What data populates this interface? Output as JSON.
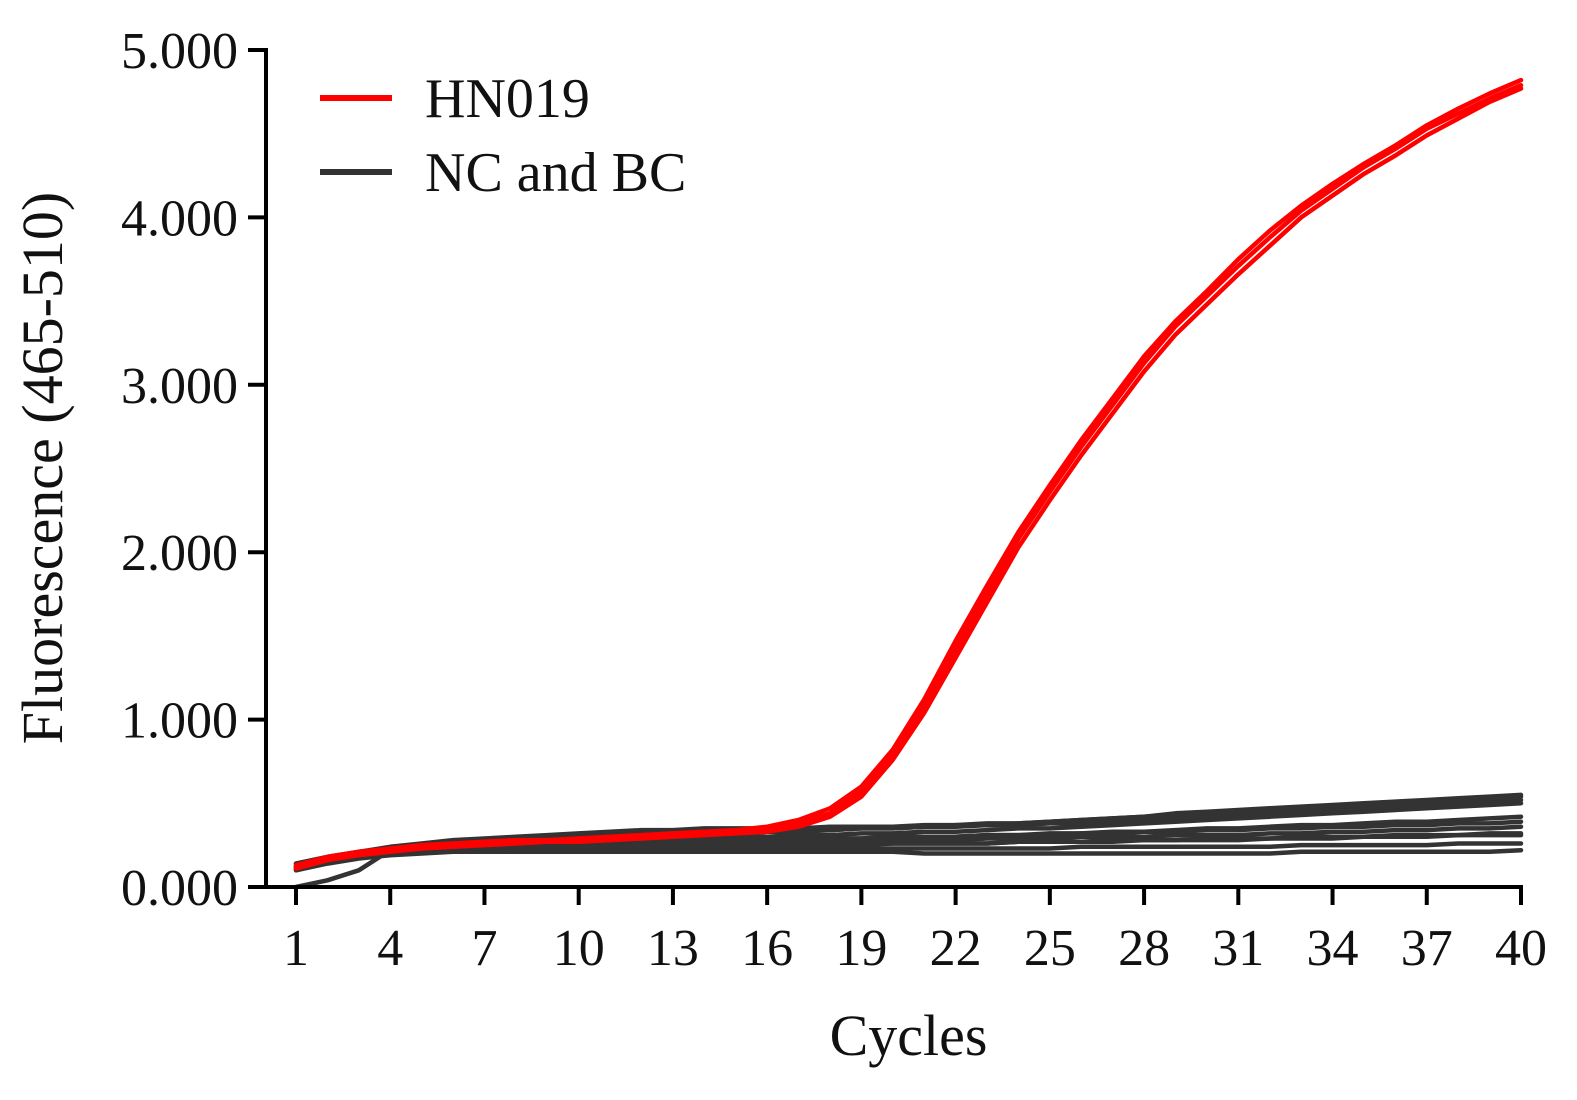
{
  "chart_data": {
    "type": "line",
    "title": "",
    "xlabel": "Cycles",
    "ylabel": "Fluorescence (465-510)",
    "xlim": [
      1,
      40
    ],
    "ylim": [
      0,
      5
    ],
    "x_ticks": [
      1,
      4,
      7,
      10,
      13,
      16,
      19,
      22,
      25,
      28,
      31,
      34,
      37,
      40
    ],
    "x_tick_labels": [
      "1",
      "4",
      "7",
      "10",
      "13",
      "16",
      "19",
      "22",
      "25",
      "28",
      "31",
      "34",
      "37",
      "40"
    ],
    "y_ticks": [
      0,
      1,
      2,
      3,
      4,
      5
    ],
    "y_tick_labels": [
      "0.000",
      "1.000",
      "2.000",
      "3.000",
      "4.000",
      "5.000"
    ],
    "legend_position": "top-left",
    "legend": [
      {
        "label": "HN019",
        "color": "#ff0000"
      },
      {
        "label": "NC and BC",
        "color": "#333333"
      }
    ],
    "x": [
      1,
      2,
      3,
      4,
      5,
      6,
      7,
      8,
      9,
      10,
      11,
      12,
      13,
      14,
      15,
      16,
      17,
      18,
      19,
      20,
      21,
      22,
      23,
      24,
      25,
      26,
      27,
      28,
      29,
      30,
      31,
      32,
      33,
      34,
      35,
      36,
      37,
      38,
      39,
      40
    ],
    "series": [
      {
        "name": "HN019",
        "group": "HN019",
        "color": "#ff0000",
        "values": [
          0.12,
          0.17,
          0.2,
          0.22,
          0.24,
          0.25,
          0.26,
          0.27,
          0.27,
          0.28,
          0.29,
          0.3,
          0.31,
          0.32,
          0.33,
          0.35,
          0.38,
          0.44,
          0.57,
          0.79,
          1.08,
          1.42,
          1.75,
          2.08,
          2.36,
          2.63,
          2.88,
          3.13,
          3.35,
          3.53,
          3.71,
          3.88,
          4.04,
          4.17,
          4.3,
          4.41,
          4.53,
          4.62,
          4.71,
          4.79
        ]
      },
      {
        "name": "HN019",
        "group": "HN019",
        "color": "#ff0000",
        "values": [
          0.13,
          0.18,
          0.21,
          0.23,
          0.25,
          0.26,
          0.27,
          0.28,
          0.28,
          0.29,
          0.3,
          0.31,
          0.32,
          0.33,
          0.34,
          0.36,
          0.4,
          0.47,
          0.6,
          0.82,
          1.12,
          1.47,
          1.8,
          2.12,
          2.4,
          2.67,
          2.92,
          3.17,
          3.38,
          3.56,
          3.75,
          3.92,
          4.07,
          4.2,
          4.32,
          4.43,
          4.55,
          4.65,
          4.74,
          4.82
        ]
      },
      {
        "name": "HN019",
        "group": "HN019",
        "color": "#ff0000",
        "values": [
          0.11,
          0.16,
          0.19,
          0.21,
          0.23,
          0.24,
          0.25,
          0.26,
          0.27,
          0.27,
          0.28,
          0.29,
          0.3,
          0.31,
          0.32,
          0.33,
          0.36,
          0.42,
          0.54,
          0.76,
          1.04,
          1.37,
          1.7,
          2.03,
          2.31,
          2.58,
          2.83,
          3.08,
          3.3,
          3.48,
          3.66,
          3.83,
          4.0,
          4.13,
          4.26,
          4.37,
          4.49,
          4.59,
          4.69,
          4.77
        ]
      },
      {
        "name": "NC and BC",
        "group": "NC and BC",
        "color": "#333333",
        "values": [
          0.14,
          0.18,
          0.21,
          0.23,
          0.25,
          0.26,
          0.27,
          0.28,
          0.29,
          0.29,
          0.3,
          0.31,
          0.31,
          0.32,
          0.32,
          0.33,
          0.33,
          0.34,
          0.35,
          0.35,
          0.36,
          0.37,
          0.37,
          0.38,
          0.39,
          0.4,
          0.41,
          0.42,
          0.44,
          0.45,
          0.46,
          0.47,
          0.48,
          0.49,
          0.5,
          0.51,
          0.52,
          0.53,
          0.54,
          0.55
        ]
      },
      {
        "name": "NC and BC",
        "group": "NC and BC",
        "color": "#333333",
        "values": [
          0.1,
          0.15,
          0.19,
          0.22,
          0.24,
          0.25,
          0.26,
          0.26,
          0.27,
          0.27,
          0.28,
          0.28,
          0.29,
          0.29,
          0.3,
          0.3,
          0.31,
          0.31,
          0.32,
          0.32,
          0.33,
          0.33,
          0.34,
          0.35,
          0.35,
          0.36,
          0.37,
          0.38,
          0.39,
          0.4,
          0.41,
          0.42,
          0.43,
          0.44,
          0.45,
          0.46,
          0.47,
          0.48,
          0.49,
          0.5
        ]
      },
      {
        "name": "NC and BC",
        "group": "NC and BC",
        "color": "#333333",
        "values": [
          0.12,
          0.16,
          0.2,
          0.22,
          0.23,
          0.24,
          0.25,
          0.25,
          0.26,
          0.26,
          0.27,
          0.27,
          0.27,
          0.28,
          0.28,
          0.28,
          0.29,
          0.29,
          0.29,
          0.3,
          0.3,
          0.3,
          0.31,
          0.31,
          0.32,
          0.32,
          0.33,
          0.33,
          0.34,
          0.35,
          0.35,
          0.36,
          0.37,
          0.37,
          0.38,
          0.39,
          0.39,
          0.4,
          0.41,
          0.42
        ]
      },
      {
        "name": "NC and BC",
        "group": "NC and BC",
        "color": "#333333",
        "values": [
          0.13,
          0.17,
          0.2,
          0.21,
          0.22,
          0.23,
          0.24,
          0.24,
          0.25,
          0.25,
          0.25,
          0.26,
          0.26,
          0.26,
          0.26,
          0.27,
          0.27,
          0.27,
          0.27,
          0.28,
          0.28,
          0.28,
          0.29,
          0.29,
          0.29,
          0.3,
          0.3,
          0.3,
          0.31,
          0.31,
          0.31,
          0.32,
          0.32,
          0.33,
          0.33,
          0.34,
          0.34,
          0.35,
          0.35,
          0.36
        ]
      },
      {
        "name": "NC and BC",
        "group": "NC and BC",
        "color": "#333333",
        "values": [
          0.11,
          0.15,
          0.18,
          0.2,
          0.21,
          0.22,
          0.22,
          0.23,
          0.23,
          0.23,
          0.24,
          0.24,
          0.24,
          0.24,
          0.25,
          0.25,
          0.25,
          0.25,
          0.25,
          0.26,
          0.26,
          0.26,
          0.26,
          0.27,
          0.27,
          0.27,
          0.27,
          0.28,
          0.28,
          0.28,
          0.28,
          0.29,
          0.29,
          0.29,
          0.3,
          0.3,
          0.3,
          0.31,
          0.31,
          0.31
        ]
      },
      {
        "name": "NC and BC",
        "group": "NC and BC",
        "color": "#333333",
        "values": [
          0.12,
          0.16,
          0.19,
          0.21,
          0.22,
          0.22,
          0.23,
          0.23,
          0.23,
          0.23,
          0.23,
          0.23,
          0.23,
          0.23,
          0.23,
          0.23,
          0.23,
          0.23,
          0.23,
          0.23,
          0.23,
          0.23,
          0.23,
          0.23,
          0.23,
          0.24,
          0.24,
          0.24,
          0.24,
          0.24,
          0.24,
          0.24,
          0.25,
          0.25,
          0.25,
          0.25,
          0.25,
          0.26,
          0.26,
          0.26
        ]
      },
      {
        "name": "NC and BC",
        "group": "NC and BC",
        "color": "#333333",
        "values": [
          0.1,
          0.14,
          0.17,
          0.19,
          0.2,
          0.21,
          0.21,
          0.21,
          0.21,
          0.21,
          0.21,
          0.21,
          0.21,
          0.21,
          0.21,
          0.21,
          0.21,
          0.21,
          0.21,
          0.21,
          0.2,
          0.2,
          0.2,
          0.2,
          0.2,
          0.2,
          0.2,
          0.2,
          0.2,
          0.2,
          0.2,
          0.2,
          0.21,
          0.21,
          0.21,
          0.21,
          0.21,
          0.21,
          0.21,
          0.22
        ]
      },
      {
        "name": "NC and BC",
        "group": "NC and BC",
        "color": "#333333",
        "values": [
          0.0,
          0.04,
          0.1,
          0.22,
          0.25,
          0.27,
          0.28,
          0.29,
          0.3,
          0.31,
          0.31,
          0.32,
          0.32,
          0.33,
          0.33,
          0.33,
          0.34,
          0.34,
          0.35,
          0.35,
          0.36,
          0.36,
          0.37,
          0.37,
          0.38,
          0.38,
          0.39,
          0.4,
          0.41,
          0.42,
          0.43,
          0.44,
          0.45,
          0.46,
          0.47,
          0.48,
          0.49,
          0.5,
          0.51,
          0.52
        ]
      },
      {
        "name": "NC and BC",
        "group": "NC and BC",
        "color": "#333333",
        "values": [
          0.14,
          0.18,
          0.21,
          0.24,
          0.26,
          0.28,
          0.29,
          0.3,
          0.31,
          0.32,
          0.33,
          0.34,
          0.34,
          0.35,
          0.35,
          0.35,
          0.35,
          0.36,
          0.36,
          0.36,
          0.37,
          0.37,
          0.38,
          0.38,
          0.39,
          0.4,
          0.41,
          0.42,
          0.43,
          0.44,
          0.45,
          0.46,
          0.47,
          0.48,
          0.49,
          0.5,
          0.51,
          0.52,
          0.53,
          0.54
        ]
      },
      {
        "name": "NC and BC",
        "group": "NC and BC",
        "color": "#333333",
        "values": [
          0.12,
          0.16,
          0.19,
          0.21,
          0.23,
          0.24,
          0.25,
          0.26,
          0.26,
          0.27,
          0.27,
          0.28,
          0.28,
          0.28,
          0.28,
          0.29,
          0.29,
          0.29,
          0.29,
          0.3,
          0.3,
          0.3,
          0.31,
          0.31,
          0.31,
          0.32,
          0.32,
          0.33,
          0.33,
          0.34,
          0.34,
          0.35,
          0.35,
          0.36,
          0.36,
          0.37,
          0.37,
          0.38,
          0.38,
          0.39
        ]
      },
      {
        "name": "NC and BC",
        "group": "NC and BC",
        "color": "#333333",
        "values": [
          0.11,
          0.15,
          0.18,
          0.2,
          0.22,
          0.23,
          0.23,
          0.24,
          0.24,
          0.24,
          0.24,
          0.24,
          0.25,
          0.25,
          0.25,
          0.25,
          0.25,
          0.25,
          0.26,
          0.26,
          0.26,
          0.26,
          0.26,
          0.27,
          0.27,
          0.27,
          0.28,
          0.28,
          0.28,
          0.29,
          0.29,
          0.29,
          0.3,
          0.3,
          0.3,
          0.31,
          0.31,
          0.31,
          0.32,
          0.32
        ]
      }
    ]
  }
}
